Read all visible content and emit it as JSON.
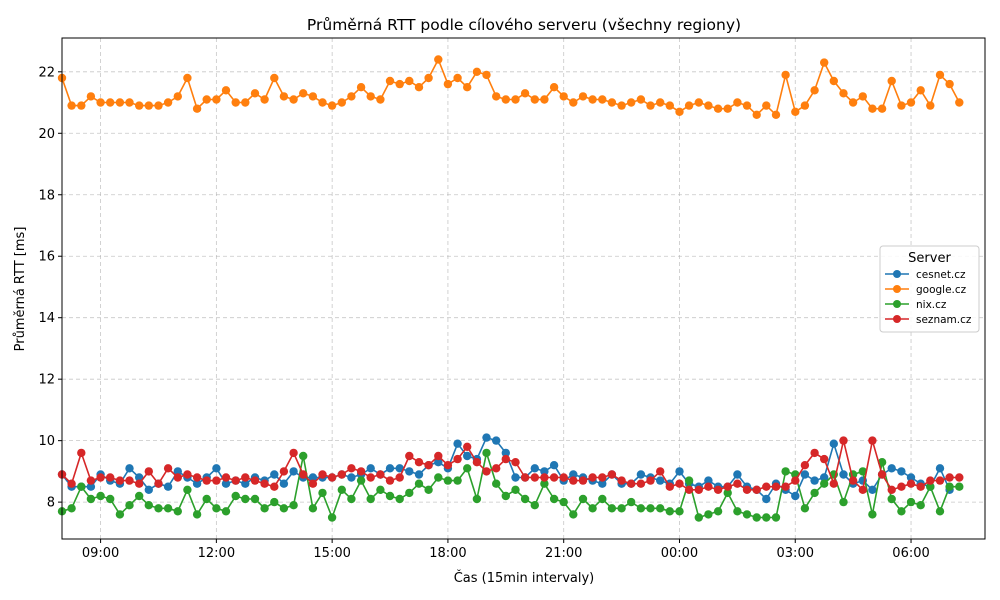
{
  "chart_data": {
    "type": "line",
    "title": "Průměrná RTT podle cílového serveru (všechny regiony)",
    "xlabel": "Čas (15min intervaly)",
    "ylabel": "Průměrná RTT [ms]",
    "x_start": "08:00",
    "x_step_minutes": 15,
    "x_ticks": [
      "09:00",
      "12:00",
      "15:00",
      "18:00",
      "21:00",
      "00:00",
      "03:00",
      "06:00"
    ],
    "xlim": [
      "08:00",
      "07:55"
    ],
    "y_ticks": [
      8,
      10,
      12,
      14,
      16,
      18,
      20,
      22
    ],
    "ylim": [
      6.8,
      23.1
    ],
    "grid": true,
    "legend": {
      "title": "Server",
      "placement": "right"
    },
    "series": [
      {
        "name": "cesnet.cz",
        "color": "#1f77b4",
        "values": [
          8.9,
          8.5,
          8.5,
          8.5,
          8.9,
          8.7,
          8.6,
          9.1,
          8.8,
          8.4,
          8.6,
          8.5,
          9.0,
          8.8,
          8.6,
          8.8,
          9.1,
          8.6,
          8.7,
          8.6,
          8.8,
          8.7,
          8.9,
          8.6,
          9.0,
          8.8,
          8.8,
          8.8,
          8.8,
          8.9,
          8.8,
          8.9,
          9.1,
          8.9,
          9.1,
          9.1,
          9.0,
          8.9,
          9.2,
          9.3,
          9.1,
          9.9,
          9.5,
          9.4,
          10.1,
          10.0,
          9.6,
          8.8,
          8.8,
          9.1,
          9.0,
          9.2,
          8.7,
          8.9,
          8.8,
          8.7,
          8.6,
          8.9,
          8.6,
          8.6,
          8.9,
          8.8,
          8.7,
          8.6,
          9.0,
          8.6,
          8.5,
          8.7,
          8.5,
          8.5,
          8.9,
          8.5,
          8.4,
          8.1,
          8.6,
          8.4,
          8.2,
          8.9,
          8.7,
          8.8,
          9.9,
          8.9,
          8.6,
          8.7,
          8.4,
          8.9,
          9.1,
          9.0,
          8.8,
          8.6,
          8.5,
          9.1,
          8.4
        ]
      },
      {
        "name": "google.cz",
        "color": "#ff7f0e",
        "values": [
          21.8,
          20.9,
          20.9,
          21.2,
          21.0,
          21.0,
          21.0,
          21.0,
          20.9,
          20.9,
          20.9,
          21.0,
          21.2,
          21.8,
          20.8,
          21.1,
          21.1,
          21.4,
          21.0,
          21.0,
          21.3,
          21.1,
          21.8,
          21.2,
          21.1,
          21.3,
          21.2,
          21.0,
          20.9,
          21.0,
          21.2,
          21.5,
          21.2,
          21.1,
          21.7,
          21.6,
          21.7,
          21.5,
          21.8,
          22.4,
          21.6,
          21.8,
          21.5,
          22.0,
          21.9,
          21.2,
          21.1,
          21.1,
          21.3,
          21.1,
          21.1,
          21.5,
          21.2,
          21.0,
          21.2,
          21.1,
          21.1,
          21.0,
          20.9,
          21.0,
          21.1,
          20.9,
          21.0,
          20.9,
          20.7,
          20.9,
          21.0,
          20.9,
          20.8,
          20.8,
          21.0,
          20.9,
          20.6,
          20.9,
          20.6,
          21.9,
          20.7,
          20.9,
          21.4,
          22.3,
          21.7,
          21.3,
          21.0,
          21.2,
          20.8,
          20.8,
          21.7,
          20.9,
          21.0,
          21.4,
          20.9,
          21.9,
          21.6,
          21.0
        ]
      },
      {
        "name": "nix.cz",
        "color": "#2ca02c",
        "values": [
          7.7,
          7.8,
          8.5,
          8.1,
          8.2,
          8.1,
          7.6,
          7.9,
          8.2,
          7.9,
          7.8,
          7.8,
          7.7,
          8.4,
          7.6,
          8.1,
          7.8,
          7.7,
          8.2,
          8.1,
          8.1,
          7.8,
          8.0,
          7.8,
          7.9,
          9.5,
          7.8,
          8.3,
          7.5,
          8.4,
          8.1,
          8.7,
          8.1,
          8.4,
          8.2,
          8.1,
          8.3,
          8.6,
          8.4,
          8.8,
          8.7,
          8.7,
          9.1,
          8.1,
          9.6,
          8.6,
          8.2,
          8.4,
          8.1,
          7.9,
          8.6,
          8.1,
          8.0,
          7.6,
          8.1,
          7.8,
          8.1,
          7.8,
          7.8,
          8.0,
          7.8,
          7.8,
          7.8,
          7.7,
          7.7,
          8.7,
          7.5,
          7.6,
          7.7,
          8.3,
          7.7,
          7.6,
          7.5,
          7.5,
          7.5,
          9.0,
          8.9,
          7.8,
          8.3,
          8.6,
          8.9,
          8.0,
          8.9,
          9.0,
          7.6,
          9.3,
          8.1,
          7.7,
          8.0,
          7.9,
          8.5,
          7.7,
          8.5,
          8.5
        ]
      },
      {
        "name": "seznam.cz",
        "color": "#d62728",
        "values": [
          8.9,
          8.6,
          9.6,
          8.7,
          8.8,
          8.8,
          8.7,
          8.7,
          8.6,
          9.0,
          8.6,
          9.1,
          8.8,
          8.9,
          8.8,
          8.7,
          8.7,
          8.8,
          8.7,
          8.8,
          8.7,
          8.6,
          8.5,
          9.0,
          9.6,
          8.9,
          8.6,
          8.9,
          8.8,
          8.9,
          9.1,
          9.0,
          8.8,
          8.9,
          8.7,
          8.8,
          9.5,
          9.3,
          9.2,
          9.5,
          9.2,
          9.4,
          9.8,
          9.3,
          9.0,
          9.1,
          9.4,
          9.3,
          8.8,
          8.8,
          8.8,
          8.8,
          8.8,
          8.7,
          8.7,
          8.8,
          8.8,
          8.9,
          8.7,
          8.6,
          8.6,
          8.7,
          9.0,
          8.5,
          8.6,
          8.4,
          8.4,
          8.5,
          8.4,
          8.5,
          8.6,
          8.4,
          8.4,
          8.5,
          8.5,
          8.5,
          8.7,
          9.2,
          9.6,
          9.4,
          8.6,
          10.0,
          8.7,
          8.4,
          10.0,
          8.9,
          8.4,
          8.5,
          8.6,
          8.5,
          8.7,
          8.7,
          8.8,
          8.8
        ]
      }
    ]
  }
}
